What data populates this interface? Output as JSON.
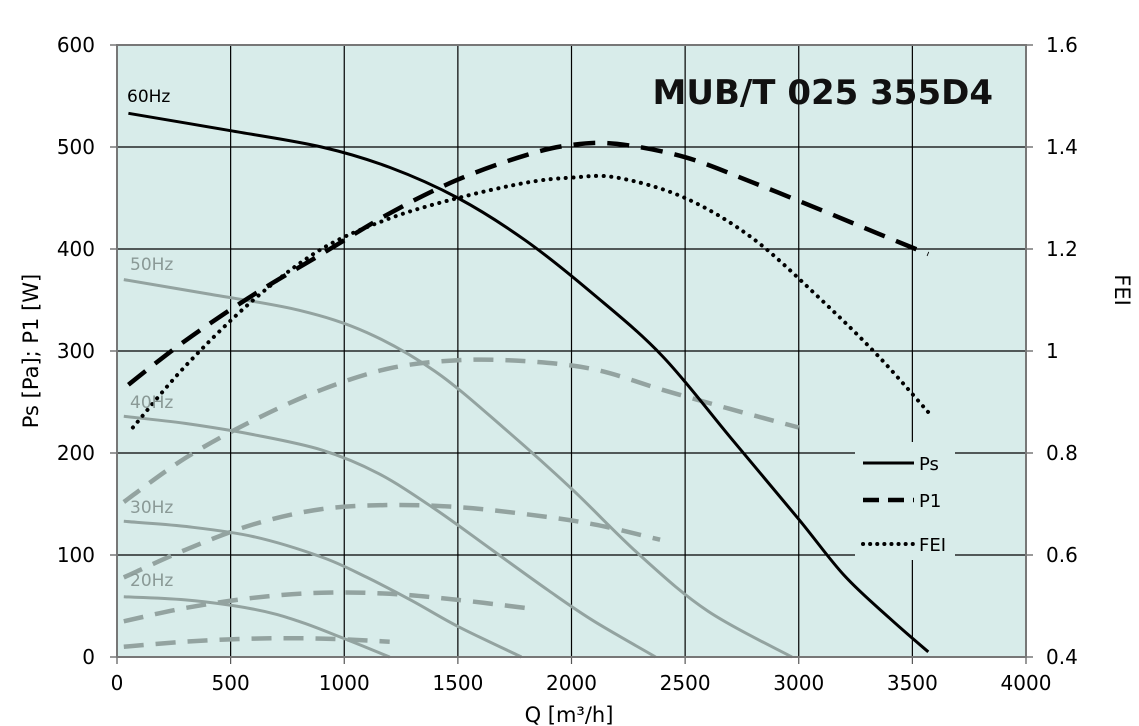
{
  "chart_data": {
    "type": "line",
    "title": "MUB/T 025 355D4",
    "xlabel": "Q [m³/h]",
    "ylabel": "Ps [Pa]; P1 [W]",
    "y2label": "FEI",
    "xlim": [
      0,
      4000
    ],
    "ylim": [
      0,
      600
    ],
    "y2lim": [
      0.4,
      1.6
    ],
    "xticks": [
      "0",
      "500",
      "1000",
      "1500",
      "2000",
      "2500",
      "3000",
      "3500",
      "4000"
    ],
    "yticks": [
      "0",
      "100",
      "200",
      "300",
      "400",
      "500",
      "600"
    ],
    "y2ticks": [
      "0.4",
      "0.6",
      "0.8",
      "1",
      "1.2",
      "1.4",
      "1.6"
    ],
    "grid": true,
    "background": "#d8ecea",
    "legend": {
      "position": "right",
      "entries": [
        "Ps",
        "P1",
        "FEI"
      ]
    },
    "frequency_labels": [
      "60Hz",
      "50Hz",
      "40Hz",
      "30Hz",
      "20Hz"
    ],
    "series": [
      {
        "name": "Ps",
        "freq": "60Hz",
        "axis": "left",
        "style": "solid",
        "color": "#000000",
        "points": [
          [
            50,
            533
          ],
          [
            500,
            516
          ],
          [
            900,
            500
          ],
          [
            1200,
            480
          ],
          [
            1500,
            450
          ],
          [
            1800,
            408
          ],
          [
            2100,
            355
          ],
          [
            2400,
            295
          ],
          [
            2700,
            215
          ],
          [
            3000,
            135
          ],
          [
            3200,
            80
          ],
          [
            3400,
            38
          ],
          [
            3570,
            5
          ]
        ]
      },
      {
        "name": "P1",
        "freq": "60Hz",
        "axis": "left",
        "style": "dashed",
        "color": "#000000",
        "points": [
          [
            50,
            267
          ],
          [
            300,
            310
          ],
          [
            600,
            355
          ],
          [
            900,
            395
          ],
          [
            1200,
            435
          ],
          [
            1500,
            468
          ],
          [
            1800,
            492
          ],
          [
            2000,
            502
          ],
          [
            2200,
            503
          ],
          [
            2500,
            490
          ],
          [
            2800,
            465
          ],
          [
            3100,
            438
          ],
          [
            3350,
            415
          ],
          [
            3570,
            395
          ]
        ]
      },
      {
        "name": "FEI",
        "freq": "60Hz",
        "axis": "right",
        "style": "dotted",
        "color": "#000000",
        "points": [
          [
            70,
            0.85
          ],
          [
            300,
            0.97
          ],
          [
            600,
            1.1
          ],
          [
            900,
            1.2
          ],
          [
            1200,
            1.26
          ],
          [
            1500,
            1.3
          ],
          [
            1800,
            1.33
          ],
          [
            2000,
            1.34
          ],
          [
            2200,
            1.34
          ],
          [
            2500,
            1.3
          ],
          [
            2800,
            1.22
          ],
          [
            3100,
            1.1
          ],
          [
            3350,
            0.99
          ],
          [
            3570,
            0.88
          ]
        ]
      },
      {
        "name": "Ps 50Hz",
        "freq": "50Hz",
        "axis": "left",
        "style": "solid",
        "color": "#93a3a0",
        "points": [
          [
            30,
            370
          ],
          [
            400,
            356
          ],
          [
            800,
            340
          ],
          [
            1100,
            318
          ],
          [
            1400,
            280
          ],
          [
            1700,
            225
          ],
          [
            2000,
            165
          ],
          [
            2300,
            100
          ],
          [
            2600,
            45
          ],
          [
            2970,
            0
          ]
        ]
      },
      {
        "name": "P1 50Hz",
        "freq": "50Hz",
        "axis": "left",
        "style": "dashed",
        "color": "#93a3a0",
        "points": [
          [
            30,
            152
          ],
          [
            300,
            195
          ],
          [
            600,
            232
          ],
          [
            900,
            262
          ],
          [
            1200,
            283
          ],
          [
            1500,
            291
          ],
          [
            1800,
            290
          ],
          [
            2100,
            282
          ],
          [
            2400,
            262
          ],
          [
            2700,
            243
          ],
          [
            3000,
            225
          ]
        ]
      },
      {
        "name": "Ps 40Hz",
        "freq": "40Hz",
        "axis": "left",
        "style": "solid",
        "color": "#93a3a0",
        "points": [
          [
            30,
            236
          ],
          [
            300,
            229
          ],
          [
            600,
            218
          ],
          [
            900,
            203
          ],
          [
            1150,
            180
          ],
          [
            1400,
            145
          ],
          [
            1650,
            105
          ],
          [
            1900,
            65
          ],
          [
            2100,
            35
          ],
          [
            2370,
            0
          ]
        ]
      },
      {
        "name": "P1 40Hz",
        "freq": "40Hz",
        "axis": "left",
        "style": "dashed",
        "color": "#93a3a0",
        "points": [
          [
            30,
            78
          ],
          [
            300,
            105
          ],
          [
            600,
            130
          ],
          [
            900,
            145
          ],
          [
            1200,
            149
          ],
          [
            1500,
            147
          ],
          [
            1800,
            140
          ],
          [
            2100,
            130
          ],
          [
            2390,
            115
          ]
        ]
      },
      {
        "name": "Ps 30Hz",
        "freq": "30Hz",
        "axis": "left",
        "style": "solid",
        "color": "#93a3a0",
        "points": [
          [
            30,
            133
          ],
          [
            300,
            128
          ],
          [
            600,
            118
          ],
          [
            900,
            98
          ],
          [
            1100,
            78
          ],
          [
            1300,
            55
          ],
          [
            1500,
            30
          ],
          [
            1780,
            0
          ]
        ]
      },
      {
        "name": "P1 30Hz",
        "freq": "30Hz",
        "axis": "left",
        "style": "dashed",
        "color": "#93a3a0",
        "points": [
          [
            30,
            35
          ],
          [
            300,
            48
          ],
          [
            600,
            58
          ],
          [
            900,
            63
          ],
          [
            1200,
            62
          ],
          [
            1500,
            56
          ],
          [
            1800,
            48
          ]
        ]
      },
      {
        "name": "Ps 20Hz",
        "freq": "20Hz",
        "axis": "left",
        "style": "solid",
        "color": "#93a3a0",
        "points": [
          [
            30,
            59
          ],
          [
            300,
            56
          ],
          [
            600,
            47
          ],
          [
            800,
            35
          ],
          [
            1000,
            18
          ],
          [
            1200,
            0
          ]
        ]
      },
      {
        "name": "P1 20Hz",
        "freq": "20Hz",
        "axis": "left",
        "style": "dashed",
        "color": "#93a3a0",
        "points": [
          [
            30,
            10
          ],
          [
            300,
            15
          ],
          [
            600,
            18
          ],
          [
            900,
            18
          ],
          [
            1200,
            15
          ]
        ]
      }
    ]
  }
}
